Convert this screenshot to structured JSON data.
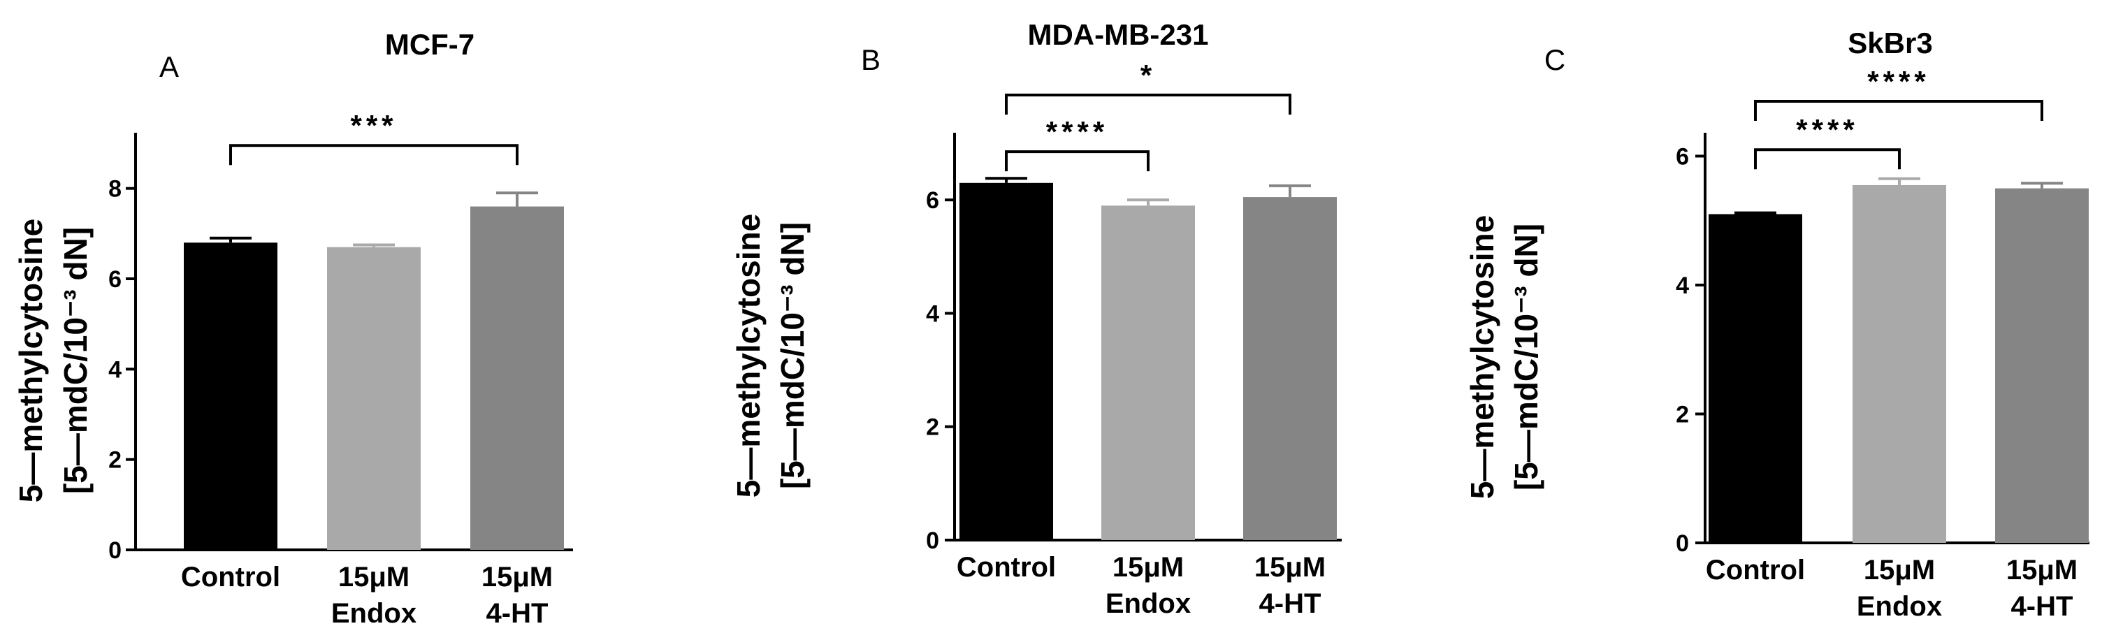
{
  "chart_data": [
    {
      "type": "bar",
      "panel": "A",
      "title": "MCF-7",
      "ylabel_line1": "5—methylcytosine",
      "ylabel_line2": "[5—mdC/10⁻³ dN]",
      "categories": [
        [
          "Control"
        ],
        [
          "15μM",
          "Endox"
        ],
        [
          "15μM",
          "4-HT"
        ]
      ],
      "values": [
        6.8,
        6.7,
        7.6
      ],
      "errors": [
        0.1,
        0.05,
        0.3
      ],
      "colors": [
        "#000000",
        "#a9a9a9",
        "#858585"
      ],
      "ylim": [
        0,
        9
      ],
      "yticks": [
        0,
        2,
        4,
        6,
        8
      ],
      "significance": [
        {
          "from": 0,
          "to": 2,
          "label": "***",
          "level": 8.95
        }
      ]
    },
    {
      "type": "bar",
      "panel": "B",
      "title": "MDA-MB-231",
      "ylabel_line1": "5—methylcytosine",
      "ylabel_line2": "[5—mdC/10⁻³ dN]",
      "categories": [
        [
          "Control"
        ],
        [
          "15μM",
          "Endox"
        ],
        [
          "15μM",
          "4-HT"
        ]
      ],
      "values": [
        6.3,
        5.9,
        6.05
      ],
      "errors": [
        0.08,
        0.1,
        0.2
      ],
      "colors": [
        "#000000",
        "#a9a9a9",
        "#858585"
      ],
      "ylim": [
        0,
        7
      ],
      "yticks": [
        0,
        2,
        4,
        6
      ],
      "significance": [
        {
          "from": 0,
          "to": 1,
          "label": "****",
          "level": 6.85
        },
        {
          "from": 0,
          "to": 2,
          "label": "*",
          "level": 7.85
        }
      ]
    },
    {
      "type": "bar",
      "panel": "C",
      "title": "SkBr3",
      "ylabel_line1": "5—methylcytosine",
      "ylabel_line2": "[5—mdC/10⁻³ dN]",
      "categories": [
        [
          "Control"
        ],
        [
          "15μM",
          "Endox"
        ],
        [
          "15μM",
          "4-HT"
        ]
      ],
      "values": [
        5.1,
        5.55,
        5.5
      ],
      "errors": [
        0.02,
        0.1,
        0.08
      ],
      "colors": [
        "#000000",
        "#a9a9a9",
        "#858585"
      ],
      "ylim": [
        0,
        6.2
      ],
      "yticks": [
        0,
        2,
        4,
        6
      ],
      "significance": [
        {
          "from": 0,
          "to": 1,
          "label": "****",
          "level": 6.1
        },
        {
          "from": 0,
          "to": 2,
          "label": "****",
          "level": 6.85
        }
      ]
    }
  ]
}
